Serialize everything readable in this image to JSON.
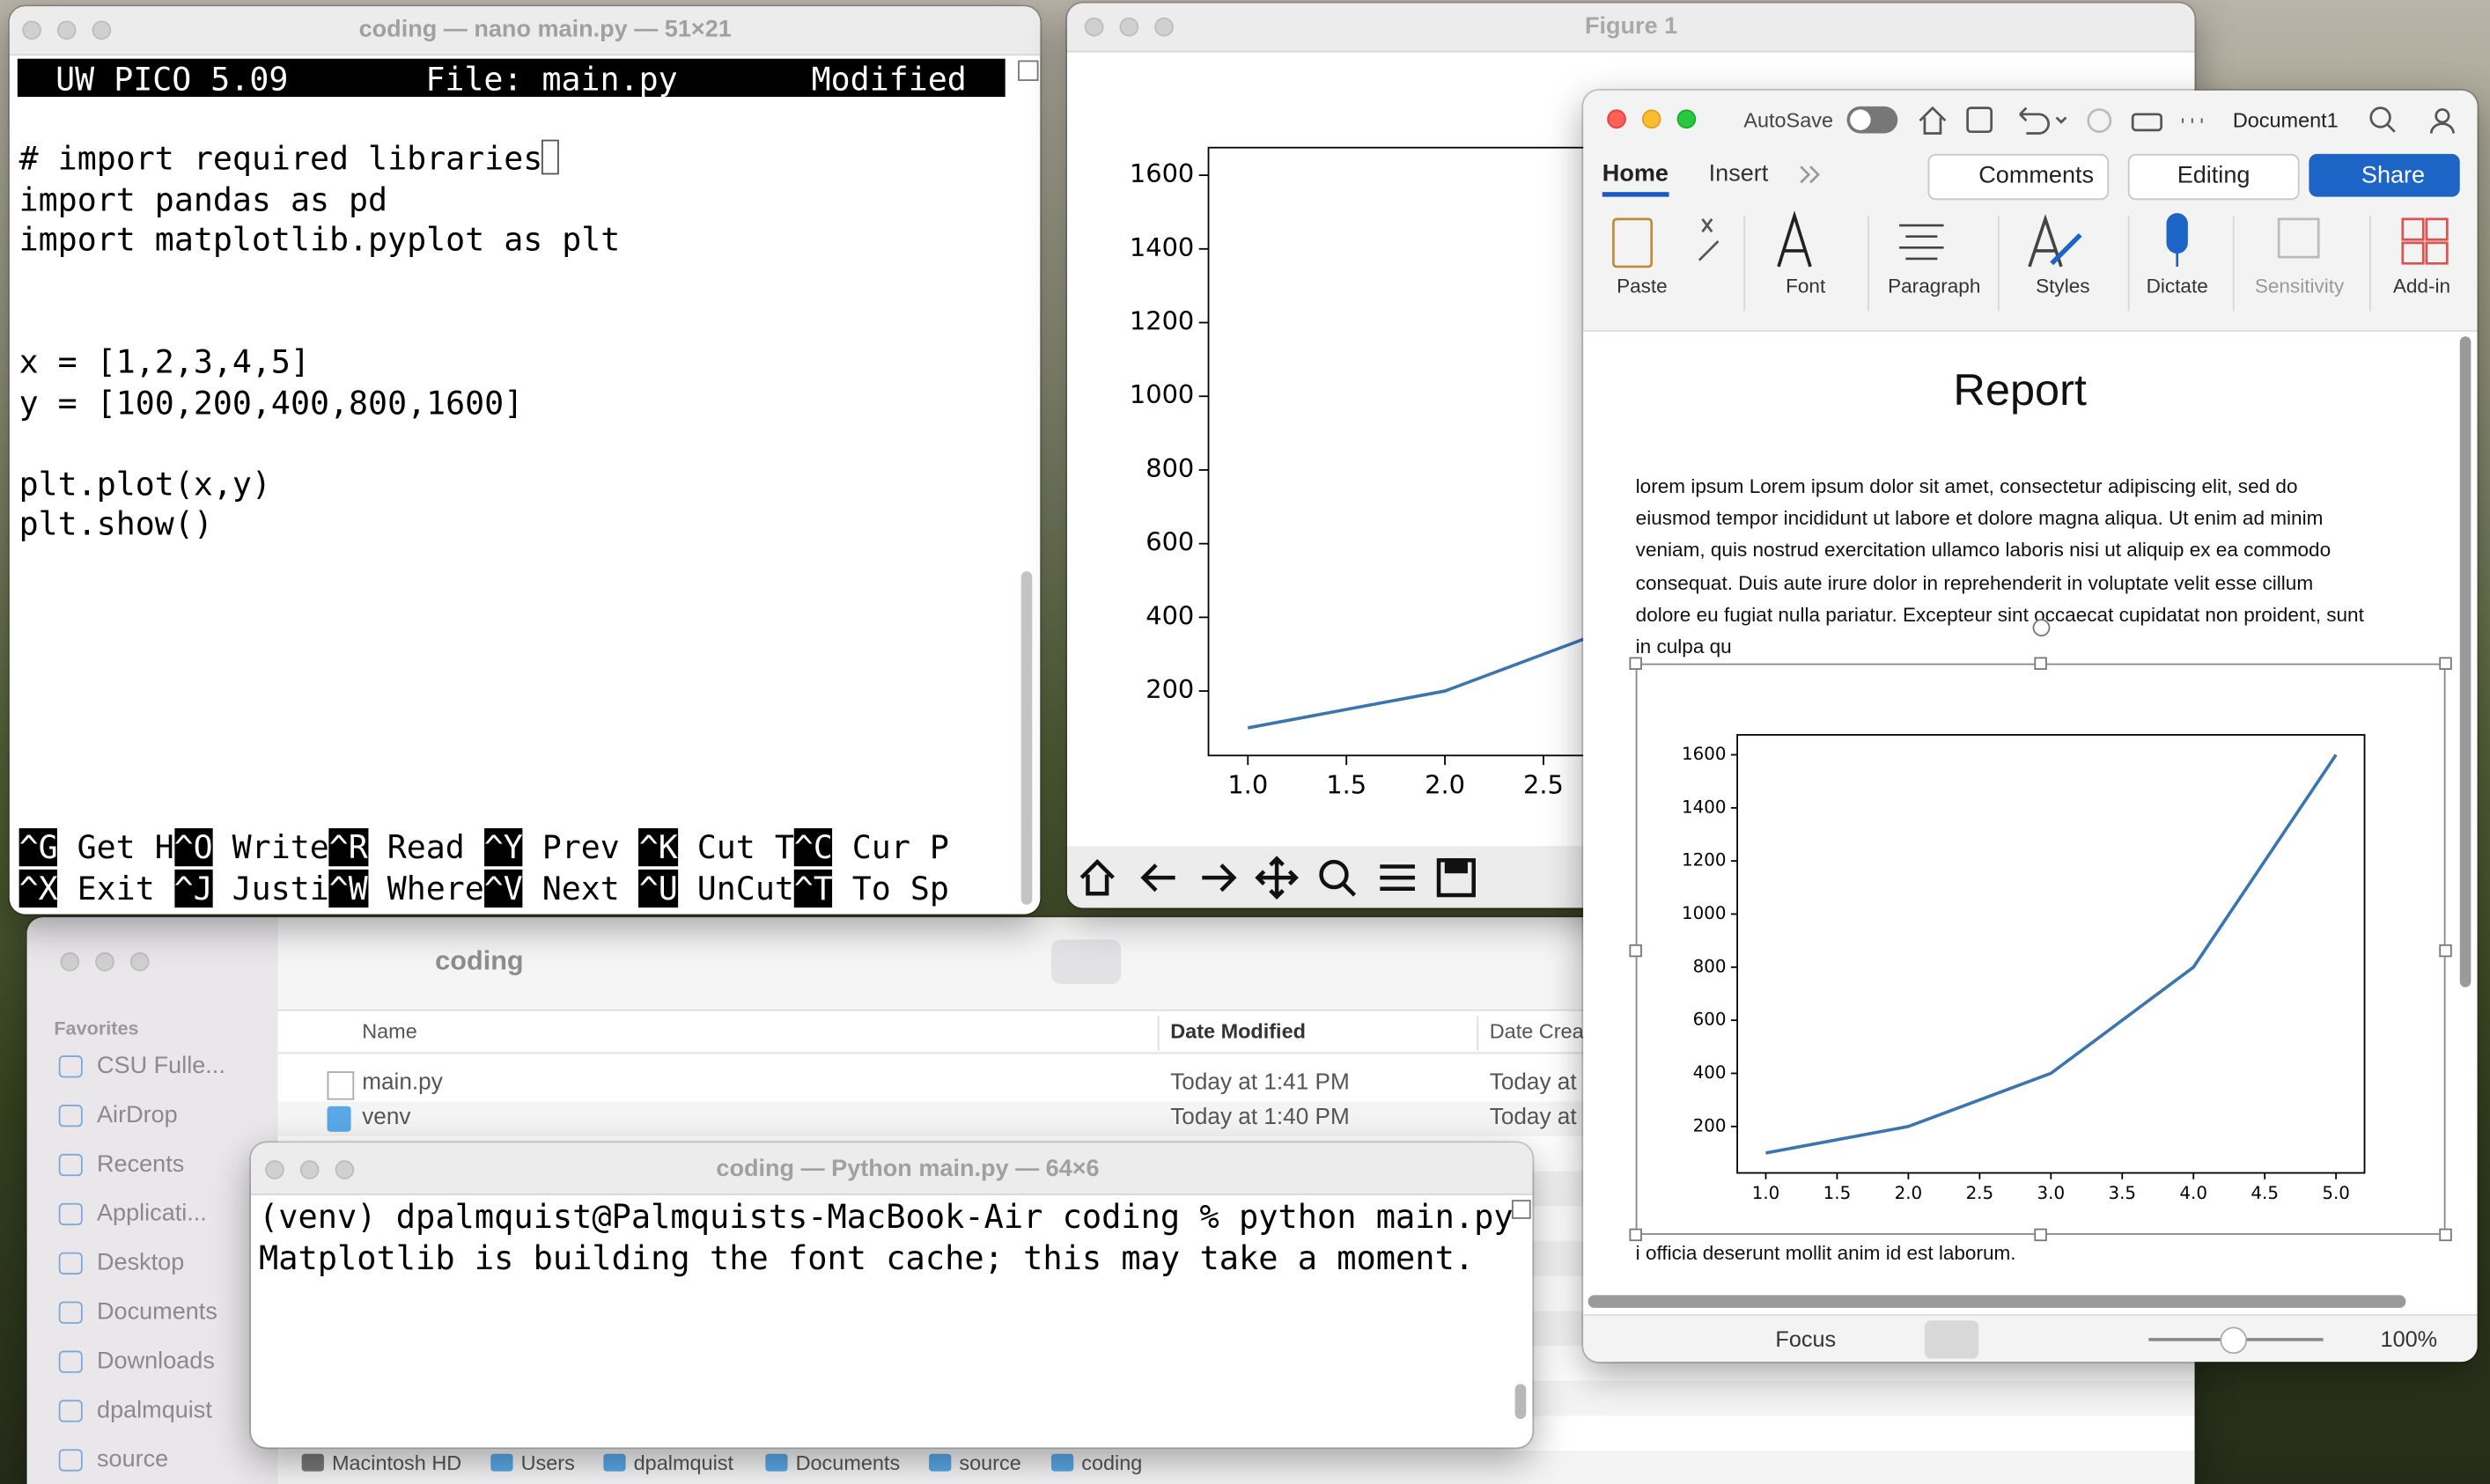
{
  "nano": {
    "title": "coding — nano main.py — 51×21",
    "header": {
      "version": "UW PICO 5.09",
      "file": "File: main.py",
      "status": "Modified"
    },
    "code": [
      [
        "# import required libraries",
        "import pandas as pd",
        "import matplotlib.pyplot as plt"
      ],
      [
        "x = [1,2,3,4,5]",
        "y = [100,200,400,800,1600]"
      ],
      [
        "plt.plot(x,y)",
        "plt.show()"
      ]
    ],
    "shortcuts": [
      [
        {
          "key": "^G",
          "label": "Get H"
        },
        {
          "key": "^O",
          "label": "Write"
        },
        {
          "key": "^R",
          "label": "Read"
        },
        {
          "key": "^Y",
          "label": "Prev"
        },
        {
          "key": "^K",
          "label": "Cut T"
        },
        {
          "key": "^C",
          "label": "Cur P"
        }
      ],
      [
        {
          "key": "^X",
          "label": "Exit"
        },
        {
          "key": "^J",
          "label": "Justi"
        },
        {
          "key": "^W",
          "label": "Where"
        },
        {
          "key": "^V",
          "label": "Next"
        },
        {
          "key": "^U",
          "label": "UnCut"
        },
        {
          "key": "^T",
          "label": "To Sp"
        }
      ]
    ]
  },
  "figure": {
    "title": "Figure 1"
  },
  "word": {
    "autosave": "AutoSave",
    "doc_name": "Document1",
    "tabs": [
      "Home",
      "Insert"
    ],
    "buttons": {
      "comments": "Comments",
      "editing": "Editing",
      "share": "Share"
    },
    "ribbon": [
      "Paste",
      "Font",
      "Paragraph",
      "Styles",
      "Dictate",
      "Sensitivity",
      "Add-in"
    ],
    "title": "Report",
    "paragraph": [
      "lorem ipsum   Lorem ipsum dolor sit amet, consectetur adipiscing elit, sed do",
      "eiusmod tempor incididunt ut labore et dolore magna aliqua. Ut enim ad minim",
      "veniam, quis nostrud exercitation ullamco laboris nisi ut aliquip ex ea commodo",
      "consequat. Duis aute irure dolor in reprehenderit in voluptate velit esse cillum",
      "dolore eu fugiat nulla pariatur. Excepteur sint occaecat cupidatat non proident, sunt",
      "in culpa qu"
    ],
    "after_chart": "i officia deserunt mollit anim id est laborum.",
    "status": {
      "focus": "Focus",
      "zoom": "100%"
    }
  },
  "finder": {
    "title": "coding",
    "sidebar_heading": "Favorites",
    "sidebar": [
      "CSU Fulle...",
      "AirDrop",
      "Recents",
      "Applicati...",
      "Desktop",
      "Documents",
      "Downloads",
      "dpalmquist",
      "source"
    ],
    "columns": [
      "Name",
      "Date Modified",
      "Date Crea"
    ],
    "rows": [
      [
        "main.py",
        "Today at 1:41 PM",
        "Today at"
      ],
      [
        "venv",
        "Today at 1:40 PM",
        "Today at"
      ]
    ],
    "path": [
      "Macintosh HD",
      "Users",
      "dpalmquist",
      "Documents",
      "source",
      "coding"
    ]
  },
  "terminal": {
    "title": "coding — Python main.py — 64×6",
    "lines": [
      "(venv) dpalmquist@Palmquists-MacBook-Air coding % python main.py",
      "Matplotlib is building the font cache; this may take a moment."
    ]
  },
  "chart_data": [
    {
      "type": "line",
      "x": [
        1,
        2,
        3,
        4,
        5
      ],
      "series": [
        {
          "values": [
            100,
            200,
            400,
            800,
            1600
          ],
          "color": "#3b75af"
        }
      ],
      "xlim": [
        0.8,
        5.2
      ],
      "ylim": [
        25,
        1675
      ],
      "xticks": [
        {
          "value": 1,
          "label": "1.0"
        },
        1.5,
        {
          "value": 2,
          "label": "2.0"
        },
        2.5
      ],
      "yticks": [
        200,
        400,
        600,
        800,
        1000,
        1200,
        1400,
        1600
      ]
    },
    {
      "type": "line",
      "x": [
        1,
        2,
        3,
        4,
        5
      ],
      "series": [
        {
          "values": [
            100,
            200,
            400,
            800,
            1600
          ],
          "color": "#3b75af"
        }
      ],
      "xlim": [
        0.8,
        5.2
      ],
      "ylim": [
        25,
        1675
      ],
      "xticks": [
        {
          "value": 1,
          "label": "1.0"
        },
        1.5,
        {
          "value": 2,
          "label": "2.0"
        },
        2.5,
        {
          "value": 3,
          "label": "3.0"
        },
        3.5,
        {
          "value": 4,
          "label": "4.0"
        },
        4.5,
        {
          "value": 5,
          "label": "5.0"
        }
      ],
      "yticks": [
        200,
        400,
        600,
        800,
        1000,
        1200,
        1400,
        1600
      ]
    }
  ]
}
